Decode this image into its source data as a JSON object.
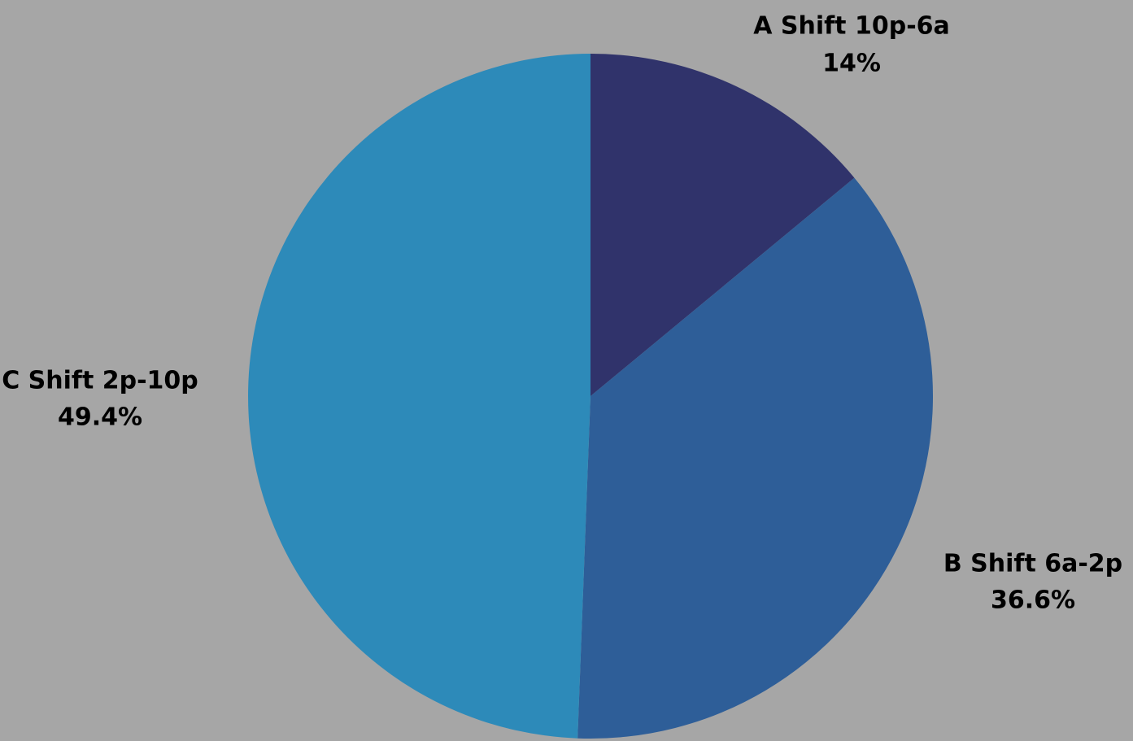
{
  "chart_data": {
    "type": "pie",
    "title": "",
    "legend": "none",
    "slices": [
      {
        "label": "A Shift 10p-6a",
        "value": 14.0,
        "display": "14%",
        "color": "#30336b"
      },
      {
        "label": "B Shift 6a-2p",
        "value": 36.6,
        "display": "36.6%",
        "color": "#2e5e98"
      },
      {
        "label": "C Shift 2p-10p",
        "value": 49.4,
        "display": "49.4%",
        "color": "#2d8ab9"
      }
    ],
    "start_angle_deg": 0,
    "direction": "clockwise",
    "data_labels": "category name and percentage, outside end"
  }
}
